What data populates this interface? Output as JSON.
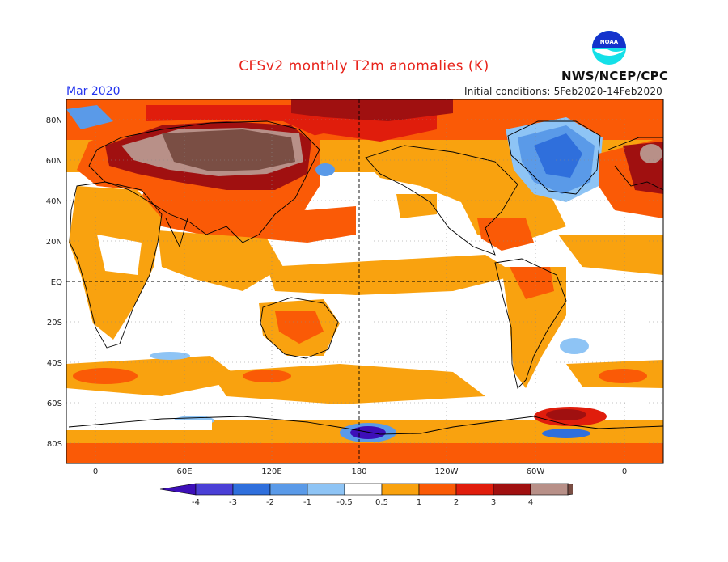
{
  "header": {
    "title": "CFSv2 monthly T2m anomalies (K)",
    "month": "Mar 2020",
    "initial_conditions": "Initial conditions: 5Feb2020-14Feb2020",
    "agency": "NWS/NCEP/CPC",
    "logo_text": "NOAA"
  },
  "map": {
    "lat_labels": [
      "80N",
      "60N",
      "40N",
      "20N",
      "EQ",
      "20S",
      "40S",
      "60S",
      "80S"
    ],
    "lon_labels": [
      "0",
      "60E",
      "120E",
      "180",
      "120W",
      "60W",
      "0"
    ]
  },
  "legend": {
    "tick_labels": [
      "-4",
      "-3",
      "-2",
      "-1",
      "-0.5",
      "0.5",
      "1",
      "2",
      "3",
      "4"
    ],
    "colors": [
      "#3d0fb8",
      "#4a3fd6",
      "#2f6fdc",
      "#5a9ae8",
      "#8ec4f5",
      "#ffffff",
      "#f9a20f",
      "#fa5a06",
      "#e01d0c",
      "#a01010",
      "#b89088",
      "#7a4e44"
    ]
  }
}
